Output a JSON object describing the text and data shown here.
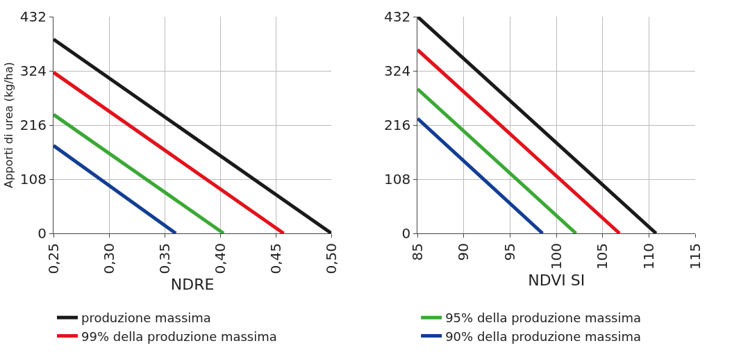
{
  "chart_data": [
    {
      "type": "line",
      "xlabel": "NDRE",
      "ylabel": "Apporti di urea (kg/ha)",
      "xlim": [
        0.25,
        0.5
      ],
      "ylim": [
        0,
        432
      ],
      "xticks": [
        {
          "value": 0.25,
          "label": "0,25"
        },
        {
          "value": 0.3,
          "label": "0,30"
        },
        {
          "value": 0.35,
          "label": "0,35"
        },
        {
          "value": 0.4,
          "label": "0,40"
        },
        {
          "value": 0.45,
          "label": "0,45"
        },
        {
          "value": 0.5,
          "label": "0,50"
        }
      ],
      "yticks": [
        0,
        108,
        216,
        324,
        432
      ],
      "grid": true,
      "legend": "bottom",
      "marker": "none",
      "line_style": "solid",
      "series": [
        {
          "name": "produzione massima",
          "color": "#1a1a1a",
          "x": [
            0.25,
            0.5
          ],
          "values": [
            387,
            0
          ]
        },
        {
          "name": "99% della produzione massima",
          "color": "#e3121b",
          "x": [
            0.25,
            0.457
          ],
          "values": [
            321,
            0
          ]
        },
        {
          "name": "95% della produzione massima",
          "color": "#3aa935",
          "x": [
            0.25,
            0.403
          ],
          "values": [
            237,
            0
          ]
        },
        {
          "name": "90% della produzione massima",
          "color": "#123e94",
          "x": [
            0.25,
            0.36
          ],
          "values": [
            175,
            0
          ]
        }
      ]
    },
    {
      "type": "line",
      "xlabel": "NDVI SI",
      "xlim": [
        85,
        115
      ],
      "ylim": [
        0,
        432
      ],
      "xticks": [
        85,
        90,
        95,
        100,
        105,
        110,
        115
      ],
      "yticks": [
        0,
        108,
        216,
        324,
        432
      ],
      "grid": true,
      "marker": "none",
      "line_style": "solid",
      "series": [
        {
          "color": "#1a1a1a",
          "x": [
            85,
            110.75
          ],
          "values": [
            432,
            0
          ]
        },
        {
          "color": "#e3121b",
          "x": [
            85,
            106.8
          ],
          "values": [
            366,
            0
          ]
        },
        {
          "color": "#3aa935",
          "x": [
            85,
            102.1
          ],
          "values": [
            288,
            0
          ]
        },
        {
          "color": "#123e94",
          "x": [
            85,
            98.5
          ],
          "values": [
            229,
            0
          ]
        }
      ]
    }
  ]
}
